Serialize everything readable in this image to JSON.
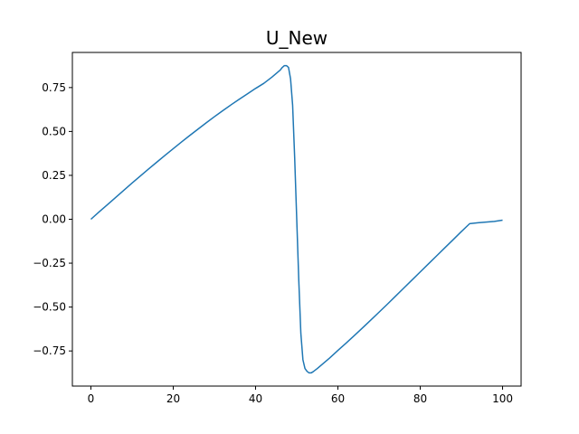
{
  "chart_data": {
    "type": "line",
    "title": "U_New",
    "xlabel": "",
    "ylabel": "",
    "xlim": [
      -4.5,
      104.5
    ],
    "ylim": [
      -0.95,
      0.95
    ],
    "xticks": [
      0,
      20,
      40,
      60,
      80,
      100
    ],
    "xtick_labels": [
      "0",
      "20",
      "40",
      "60",
      "80",
      "100"
    ],
    "yticks": [
      -0.75,
      -0.5,
      -0.25,
      0.0,
      0.25,
      0.5,
      0.75
    ],
    "ytick_labels": [
      "−0.75",
      "−0.50",
      "−0.25",
      "0.00",
      "0.25",
      "0.50",
      "0.75"
    ],
    "grid": false,
    "series": [
      {
        "color": "#1f77b4",
        "x": [
          0,
          2,
          4,
          6,
          8,
          10,
          12,
          14,
          16,
          18,
          20,
          22,
          24,
          26,
          28,
          30,
          32,
          34,
          36,
          38,
          40,
          42,
          44,
          45,
          46,
          46.5,
          47,
          47.5,
          48,
          48.5,
          49,
          49.5,
          50,
          50.5,
          51,
          51.5,
          52,
          52.5,
          53,
          53.5,
          54,
          55,
          56,
          58,
          60,
          62,
          64,
          66,
          68,
          70,
          72,
          74,
          76,
          78,
          80,
          82,
          84,
          86,
          88,
          90,
          92,
          94,
          96,
          98,
          100
        ],
        "y": [
          0.0,
          0.042,
          0.083,
          0.124,
          0.165,
          0.206,
          0.246,
          0.286,
          0.325,
          0.364,
          0.402,
          0.44,
          0.477,
          0.513,
          0.549,
          0.584,
          0.618,
          0.651,
          0.683,
          0.714,
          0.745,
          0.774,
          0.81,
          0.83,
          0.85,
          0.865,
          0.875,
          0.875,
          0.865,
          0.8,
          0.65,
          0.35,
          0.0,
          -0.35,
          -0.65,
          -0.8,
          -0.85,
          -0.866,
          -0.875,
          -0.875,
          -0.868,
          -0.85,
          -0.83,
          -0.79,
          -0.747,
          -0.705,
          -0.662,
          -0.618,
          -0.574,
          -0.529,
          -0.484,
          -0.438,
          -0.392,
          -0.346,
          -0.3,
          -0.254,
          -0.208,
          -0.162,
          -0.116,
          -0.07,
          -0.025,
          -0.02,
          -0.016,
          -0.012,
          -0.005
        ]
      }
    ]
  }
}
